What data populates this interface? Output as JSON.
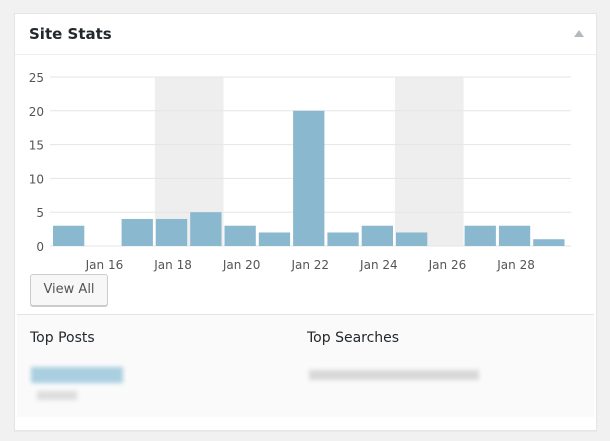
{
  "widget": {
    "title": "Site Stats",
    "view_all_label": "View All"
  },
  "colors": {
    "bar": "#8ab8ce",
    "weekend_shade": "#eeeeee",
    "grid": "#e5e5e5"
  },
  "chart_data": {
    "type": "bar",
    "categories": [
      "Jan 15",
      "Jan 16",
      "Jan 17",
      "Jan 18",
      "Jan 19",
      "Jan 20",
      "Jan 21",
      "Jan 22",
      "Jan 23",
      "Jan 24",
      "Jan 25",
      "Jan 26",
      "Jan 27",
      "Jan 28",
      "Jan 29"
    ],
    "values": [
      3,
      0,
      4,
      4,
      5,
      3,
      2,
      20,
      2,
      3,
      2,
      0,
      3,
      3,
      1
    ],
    "x_tick_labels": [
      "Jan 16",
      "Jan 18",
      "Jan 20",
      "Jan 22",
      "Jan 24",
      "Jan 26",
      "Jan 28"
    ],
    "y_ticks": [
      "0",
      "5",
      "10",
      "15",
      "20",
      "25"
    ],
    "ylim": [
      0,
      25
    ],
    "grid": true,
    "weekend_shaded": [
      [
        "Jan 18",
        "Jan 19"
      ],
      [
        "Jan 25",
        "Jan 26"
      ]
    ]
  },
  "sections": {
    "top_posts_title": "Top Posts",
    "top_searches_title": "Top Searches"
  }
}
